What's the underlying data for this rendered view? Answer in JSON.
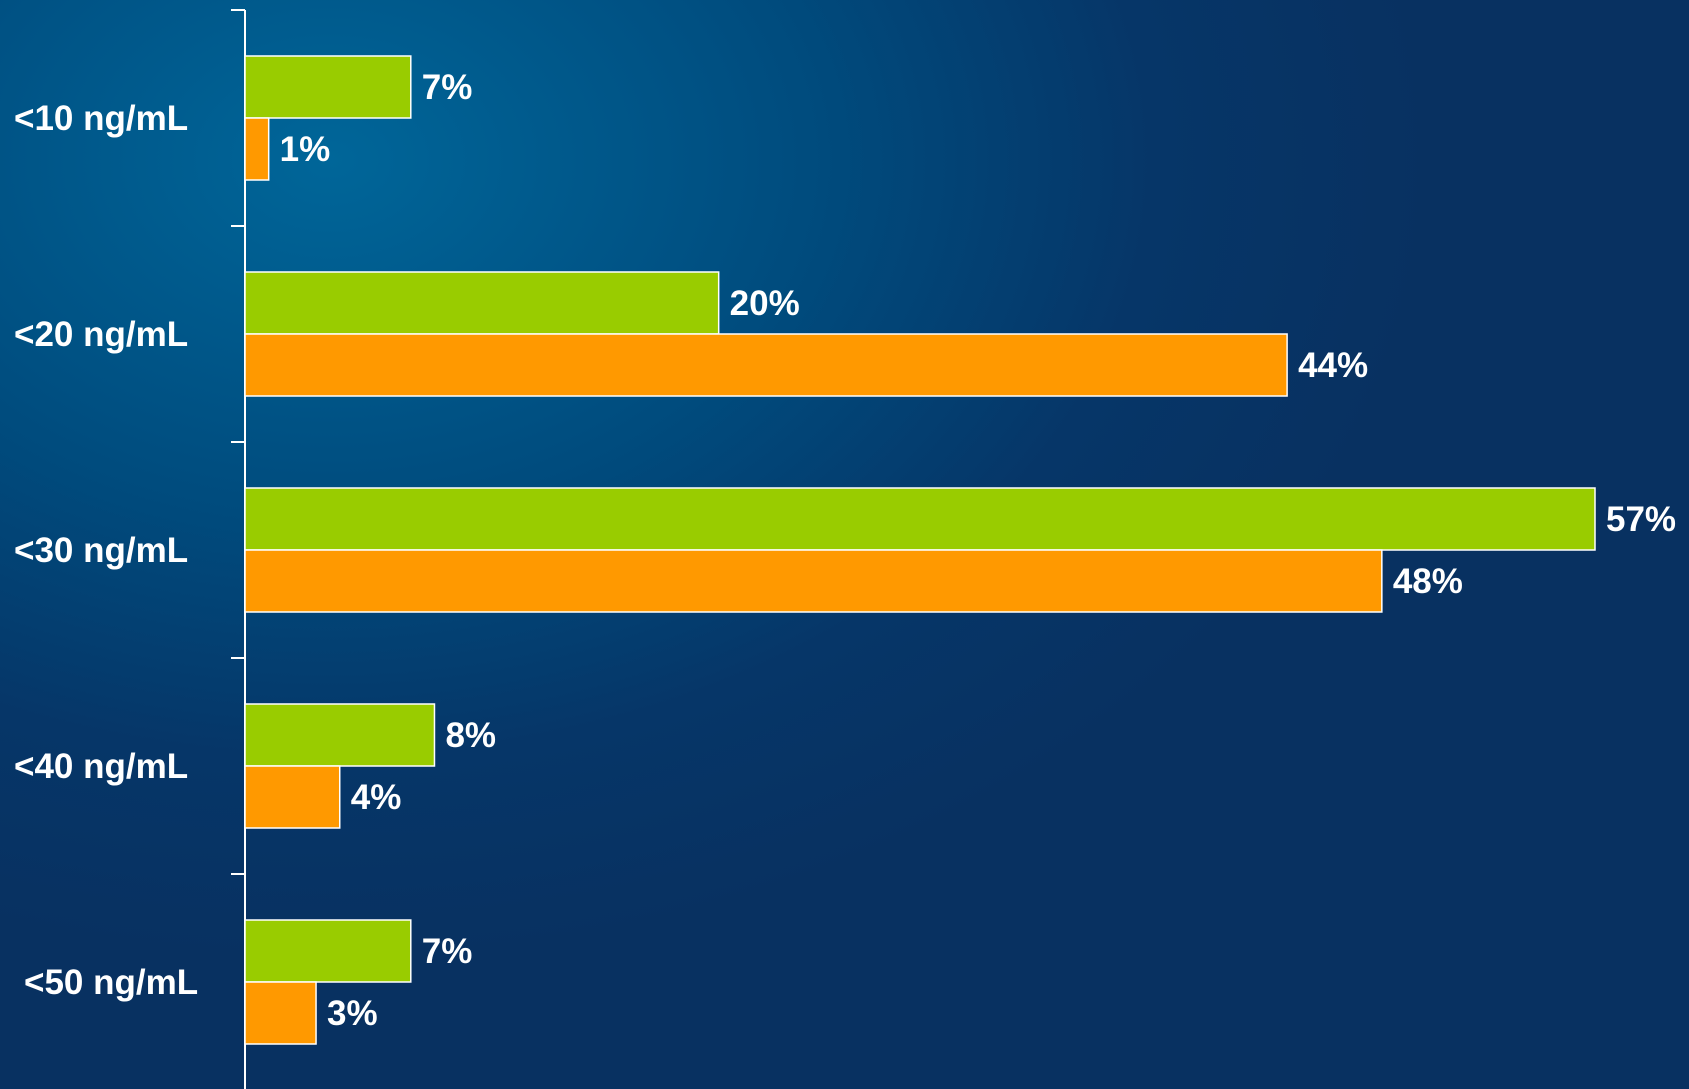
{
  "chart_data": {
    "type": "bar",
    "orientation": "horizontal",
    "categories": [
      "<10 ng/mL",
      "<20 ng/mL",
      "<30 ng/mL",
      "<40 ng/mL",
      "<50 ng/mL"
    ],
    "series": [
      {
        "values": [
          7,
          20,
          57,
          8,
          7
        ],
        "labels": [
          "7%",
          "20%",
          "57%",
          "8%",
          "7%"
        ],
        "color": "#99cc00"
      },
      {
        "values": [
          1,
          44,
          48,
          4,
          3
        ],
        "labels": [
          "1%",
          "44%",
          "48%",
          "4%",
          "3%"
        ],
        "color": "#ff9900"
      }
    ],
    "title": "",
    "xlabel": "",
    "ylabel": "",
    "xlim": [
      0,
      57
    ],
    "grid": false,
    "legend": "none"
  }
}
